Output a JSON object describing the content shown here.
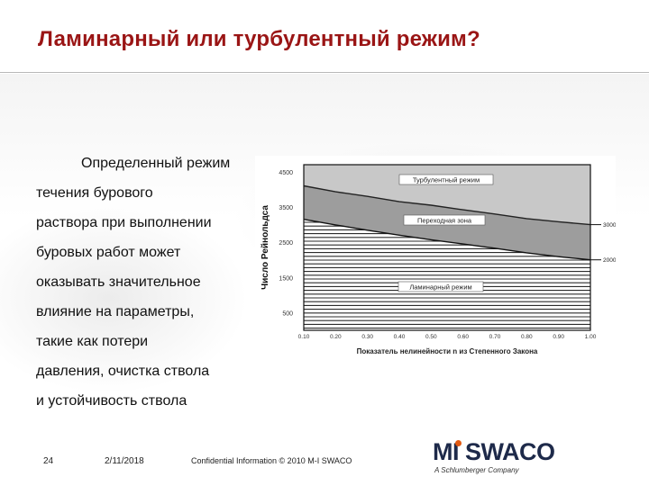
{
  "slide": {
    "title": "Ламинарный или турбулентный режим?",
    "body_lines": [
      "Определенный режим",
      "течения бурового",
      "раствора при выполнении",
      "буровых работ может",
      "оказывать значительное",
      "влияние на параметры,",
      "такие как потери",
      "давления, очистка ствола",
      "и устойчивость ствола"
    ]
  },
  "chart_data": {
    "type": "area",
    "ylabel": "Число Рейнольдса",
    "xlabel": "Показатель нелинейности n из Степенного Закона",
    "x_ticks": [
      "0.10",
      "0.20",
      "0.30",
      "0.40",
      "0.50",
      "0.60",
      "0.70",
      "0.80",
      "0.90",
      "1.00"
    ],
    "y_ticks": [
      "4500",
      "3500",
      "2500",
      "1500",
      "500"
    ],
    "xlim": [
      0.1,
      1.0
    ],
    "ylim": [
      0,
      4700
    ],
    "grid": false,
    "series": [
      {
        "name": "upper",
        "x": [
          0.1,
          0.2,
          0.3,
          0.4,
          0.5,
          0.6,
          0.7,
          0.8,
          0.9,
          1.0
        ],
        "values": [
          4100,
          3930,
          3800,
          3650,
          3550,
          3420,
          3300,
          3170,
          3080,
          3000
        ]
      },
      {
        "name": "lower",
        "x": [
          0.1,
          0.2,
          0.3,
          0.4,
          0.5,
          0.6,
          0.7,
          0.8,
          0.9,
          1.0
        ],
        "values": [
          3150,
          2990,
          2840,
          2700,
          2570,
          2450,
          2330,
          2200,
          2090,
          2000
        ]
      }
    ],
    "zone_labels": [
      "Турбулентный режим",
      "Переходная зона",
      "Ламинарный режим"
    ],
    "side_labels": [
      "3000",
      "2000"
    ],
    "colors": {
      "turbulent": "#c8c8c8",
      "transition": "#9d9d9d",
      "laminar_stripe": "#2b2b2b",
      "frame": "#111111"
    }
  },
  "footer": {
    "page_number": "24",
    "date": "2/11/2018",
    "confidential": "Confidential Information © 2010 M-I SWACO"
  },
  "logo": {
    "brand_mi": "MI",
    "brand_rest": " SWACO",
    "tagline": "A Schlumberger Company",
    "accent_color": "#e25a12"
  }
}
